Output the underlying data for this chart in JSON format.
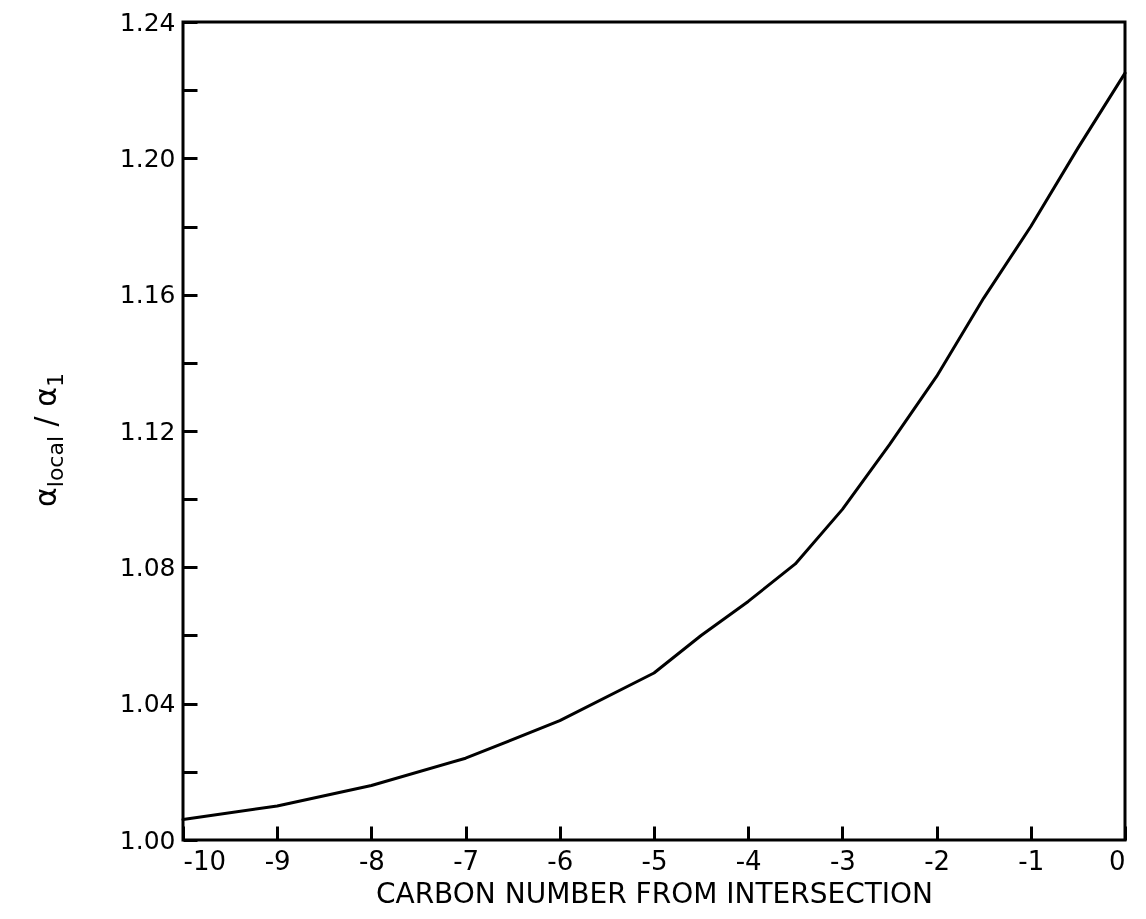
{
  "chart_data": {
    "type": "line",
    "xlabel": "CARBON NUMBER FROM INTERSECTION",
    "ylabel": "α$_{local}$ / α$_{1}$",
    "x": [
      -10,
      -9,
      -8,
      -7,
      -6,
      -5,
      -4.5,
      -4,
      -3.5,
      -3,
      -2.5,
      -2,
      -1.5,
      -1,
      -0.5,
      0
    ],
    "series": [
      {
        "color": "#000000",
        "values": [
          1.006,
          1.01,
          1.016,
          1.024,
          1.035,
          1.049,
          1.06,
          1.07,
          1.081,
          1.097,
          1.116,
          1.136,
          1.159,
          1.18,
          1.203,
          1.225
        ]
      }
    ],
    "xlim": [
      -10,
      0
    ],
    "xticks": [
      -10,
      -9,
      -8,
      -7,
      -6,
      -5,
      -4,
      -3,
      -2,
      -1,
      0
    ],
    "ylim": [
      1.0,
      1.24
    ],
    "yticks": [
      {
        "value": 1.0,
        "label": "1.00"
      },
      {
        "value": 1.02,
        "label": null
      },
      1.04,
      {
        "value": 1.06,
        "label": null
      },
      1.08,
      {
        "value": 1.1,
        "label": null
      },
      1.12,
      {
        "value": 1.14,
        "label": null
      },
      1.16,
      {
        "value": 1.18,
        "label": null
      },
      {
        "value": 1.2,
        "label": "1.20"
      },
      {
        "value": 1.22,
        "label": null
      },
      1.24
    ],
    "grid": false,
    "marker": "none",
    "line_style": "solid"
  }
}
